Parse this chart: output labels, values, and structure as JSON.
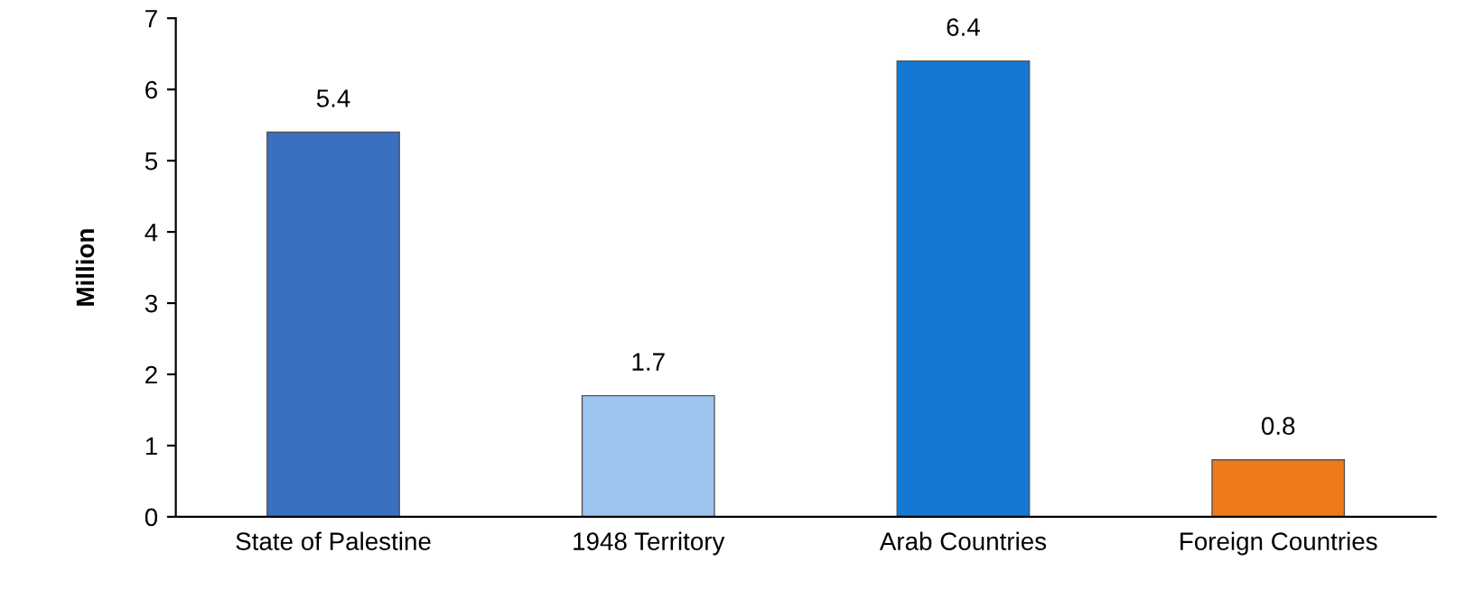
{
  "chart_data": {
    "type": "bar",
    "ylabel": "Million",
    "categories": [
      "State of Palestine",
      "1948 Territory",
      "Arab Countries",
      "Foreign Countries"
    ],
    "values": [
      5.4,
      1.7,
      6.4,
      0.8
    ],
    "colors": [
      "#3b6fbf",
      "#9dc3ef",
      "#1479d2",
      "#ee7a1c"
    ],
    "ylim": [
      0,
      7
    ],
    "yticks": [
      0,
      1,
      2,
      3,
      4,
      5,
      6,
      7
    ],
    "data_labels": true,
    "grid": false,
    "legend": false
  }
}
